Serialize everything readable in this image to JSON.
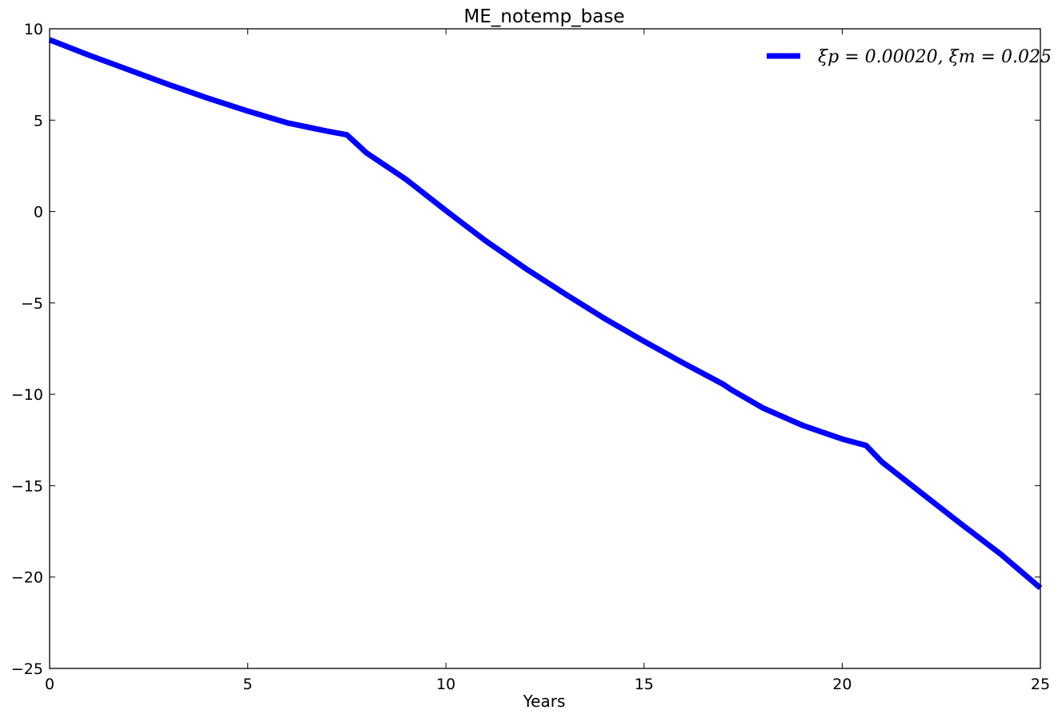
{
  "chart_data": {
    "type": "line",
    "title": "ME_notemp_base",
    "xlabel": "Years",
    "ylabel": "",
    "xlim": [
      0,
      25
    ],
    "ylim": [
      -25,
      10
    ],
    "xticks": [
      0,
      5,
      10,
      15,
      20,
      25
    ],
    "yticks": [
      -25,
      -20,
      -15,
      -10,
      -5,
      0,
      5,
      10
    ],
    "xtick_labels": [
      "0",
      "5",
      "10",
      "15",
      "20",
      "25"
    ],
    "ytick_labels": [
      "−25",
      "−20",
      "−15",
      "−10",
      "−5",
      "0",
      "5",
      "10"
    ],
    "grid": false,
    "legend_position": "top-right",
    "series": [
      {
        "name": "ξp = 0.00020, ξm = 0.025",
        "color": "#0000ff",
        "x": [
          0,
          1,
          2,
          3,
          4,
          5,
          6,
          7,
          7.5,
          8,
          9,
          10,
          11,
          12,
          13,
          14,
          15,
          16,
          17,
          17.2,
          18,
          19,
          20,
          20.6,
          21,
          22,
          23,
          24,
          25
        ],
        "y": [
          9.4,
          8.55,
          7.75,
          6.95,
          6.2,
          5.5,
          4.85,
          4.4,
          4.2,
          3.2,
          1.75,
          0.05,
          -1.6,
          -3.1,
          -4.5,
          -5.85,
          -7.1,
          -8.3,
          -9.45,
          -9.75,
          -10.75,
          -11.7,
          -12.45,
          -12.8,
          -13.7,
          -15.4,
          -17.1,
          -18.75,
          -20.6
        ]
      }
    ]
  },
  "legend": {
    "label": "ξp = 0.00020, ξm = 0.025"
  }
}
